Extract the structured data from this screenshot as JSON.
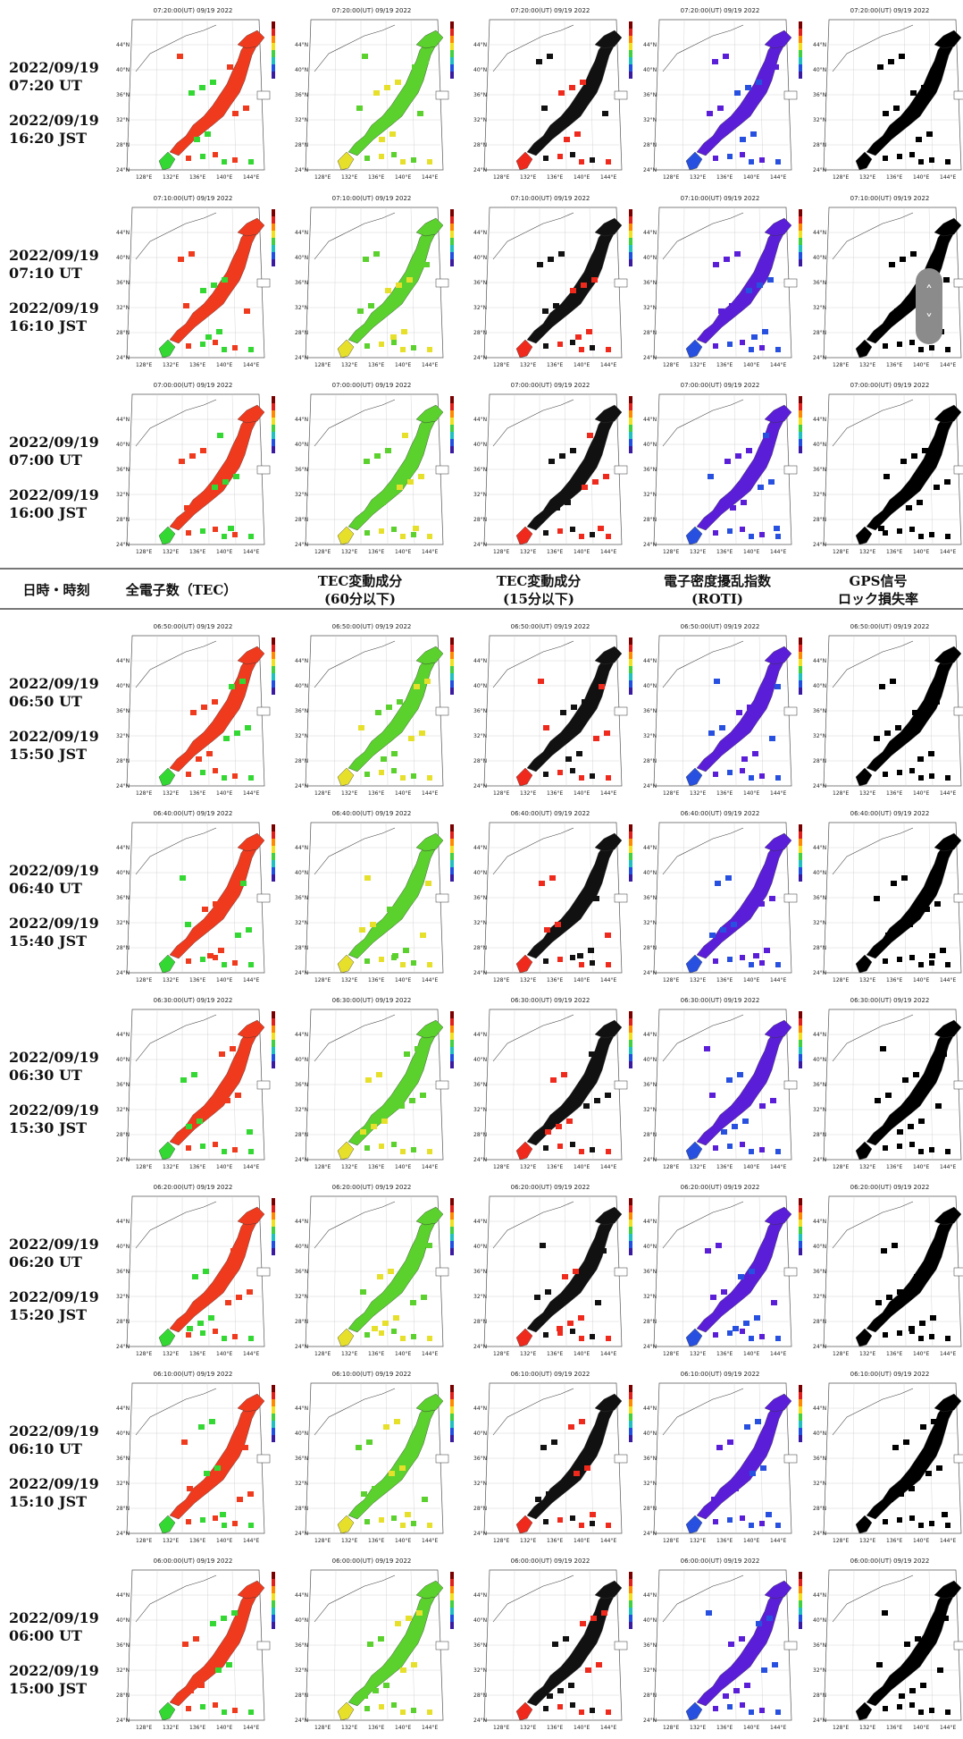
{
  "header": {
    "col_datetime": "日時・時刻",
    "col_tec": "全電子数（TEC）",
    "col_tec60_line1": "TEC変動成分",
    "col_tec60_line2": "(60分以下)",
    "col_tec15_line1": "TEC変動成分",
    "col_tec15_line2": "(15分以下)",
    "col_roti_line1": "電子密度擾乱指数",
    "col_roti_line2": "(ROTI)",
    "col_lock_line1": "GPS信号",
    "col_lock_line2": "ロック損失率"
  },
  "rows": [
    {
      "date_ut": "2022/09/19",
      "time_ut": "07:20 UT",
      "date_jst": "2022/09/19",
      "time_jst": "16:20 JST",
      "map_title": "07:20:00(UT) 09/19 2022"
    },
    {
      "date_ut": "2022/09/19",
      "time_ut": "07:10 UT",
      "date_jst": "2022/09/19",
      "time_jst": "16:10 JST",
      "map_title": "07:10:00(UT) 09/19 2022"
    },
    {
      "date_ut": "2022/09/19",
      "time_ut": "07:00 UT",
      "date_jst": "2022/09/19",
      "time_jst": "16:00 JST",
      "map_title": "07:00:00(UT) 09/19 2022"
    },
    {
      "date_ut": "2022/09/19",
      "time_ut": "06:50 UT",
      "date_jst": "2022/09/19",
      "time_jst": "15:50 JST",
      "map_title": "06:50:00(UT) 09/19 2022"
    },
    {
      "date_ut": "2022/09/19",
      "time_ut": "06:40 UT",
      "date_jst": "2022/09/19",
      "time_jst": "15:40 JST",
      "map_title": "06:40:00(UT) 09/19 2022"
    },
    {
      "date_ut": "2022/09/19",
      "time_ut": "06:30 UT",
      "date_jst": "2022/09/19",
      "time_jst": "15:30 JST",
      "map_title": "06:30:00(UT) 09/19 2022"
    },
    {
      "date_ut": "2022/09/19",
      "time_ut": "06:20 UT",
      "date_jst": "2022/09/19",
      "time_jst": "15:20 JST",
      "map_title": "06:20:00(UT) 09/19 2022"
    },
    {
      "date_ut": "2022/09/19",
      "time_ut": "06:10 UT",
      "date_jst": "2022/09/19",
      "time_jst": "15:10 JST",
      "map_title": "06:10:00(UT) 09/19 2022"
    },
    {
      "date_ut": "2022/09/19",
      "time_ut": "06:00 UT",
      "date_jst": "2022/09/19",
      "time_jst": "15:00 JST",
      "map_title": "06:00:00(UT) 09/19 2022"
    }
  ],
  "map_axis": {
    "lat_labels": [
      "44°N",
      "40°N",
      "36°N",
      "32°N",
      "28°N",
      "24°N"
    ],
    "lon_labels": [
      "128°E",
      "132°E",
      "136°E",
      "140°E",
      "144°E"
    ]
  },
  "panels": [
    {
      "key": "tec",
      "fill": "#f03a1e",
      "fill2": "#33d833"
    },
    {
      "key": "tec60",
      "fill": "#5ad12c",
      "fill2": "#e6e02a"
    },
    {
      "key": "tec15",
      "fill": "#111111",
      "fill2": "#ef2a1c"
    },
    {
      "key": "roti",
      "fill": "#5a1ed8",
      "fill2": "#2850e0"
    },
    {
      "key": "lock",
      "fill": "#000000",
      "fill2": "#000000"
    }
  ],
  "scroll": {
    "up_icon": "˄",
    "down_icon": "˅"
  }
}
